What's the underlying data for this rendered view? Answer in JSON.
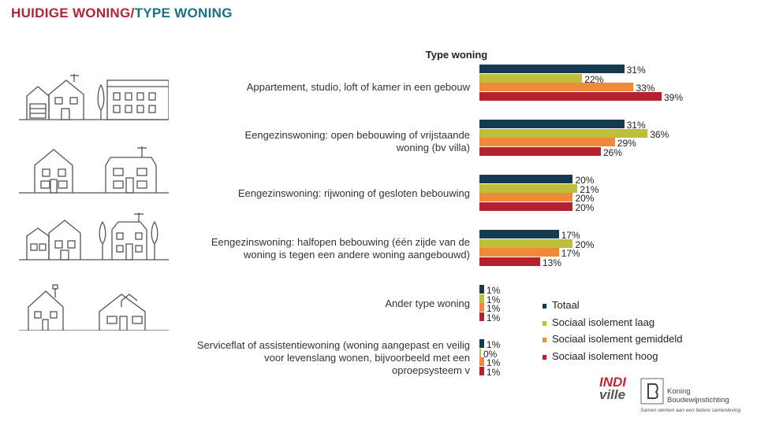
{
  "page": {
    "title_part1": "HUIDIGE WONING/",
    "title_part2": "TYPE WONING"
  },
  "colors": {
    "totaal": "#163a4f",
    "laag": "#bdbf3a",
    "gemiddeld": "#f08a3a",
    "hoog": "#b5212f",
    "title_red": "#b32534",
    "title_teal": "#1d6f88"
  },
  "logos": {
    "indi_line1": "INDI",
    "indi_line2": "ville",
    "kbs_line1": "Koning",
    "kbs_line2": "Boudewijnstichting",
    "kbs_tagline": "Samen werken aan een betere samenleving"
  },
  "chart_data": {
    "type": "bar",
    "orientation": "horizontal",
    "title": "Type woning",
    "categories": [
      "Appartement, studio, loft of kamer in een gebouw",
      "Eengezinswoning: open bebouwing of vrijstaande woning (bv villa)",
      "Eengezinswoning: rijwoning of gesloten bebouwing",
      "Eengezinswoning: halfopen bebouwing (één zijde van de woning is tegen een andere woning aangebouwd)",
      "Ander type woning",
      "Serviceflat of assistentiewoning (woning aangepast en veilig voor levenslang wonen, bijvoorbeeld met een oproepsysteem v"
    ],
    "series": [
      {
        "name": "Totaal",
        "color": "#163a4f",
        "values": [
          31,
          31,
          20,
          17,
          1,
          1
        ]
      },
      {
        "name": "Sociaal isolement laag",
        "color": "#bdbf3a",
        "values": [
          22,
          36,
          21,
          20,
          1,
          0
        ]
      },
      {
        "name": "Sociaal isolement gemiddeld",
        "color": "#f08a3a",
        "values": [
          33,
          29,
          20,
          17,
          1,
          1
        ]
      },
      {
        "name": "Sociaal isolement hoog",
        "color": "#b5212f",
        "values": [
          39,
          26,
          20,
          13,
          1,
          1
        ]
      }
    ],
    "value_format": "%",
    "xlim": [
      0,
      39
    ],
    "grid": false,
    "legend_position": "bottom-right"
  }
}
